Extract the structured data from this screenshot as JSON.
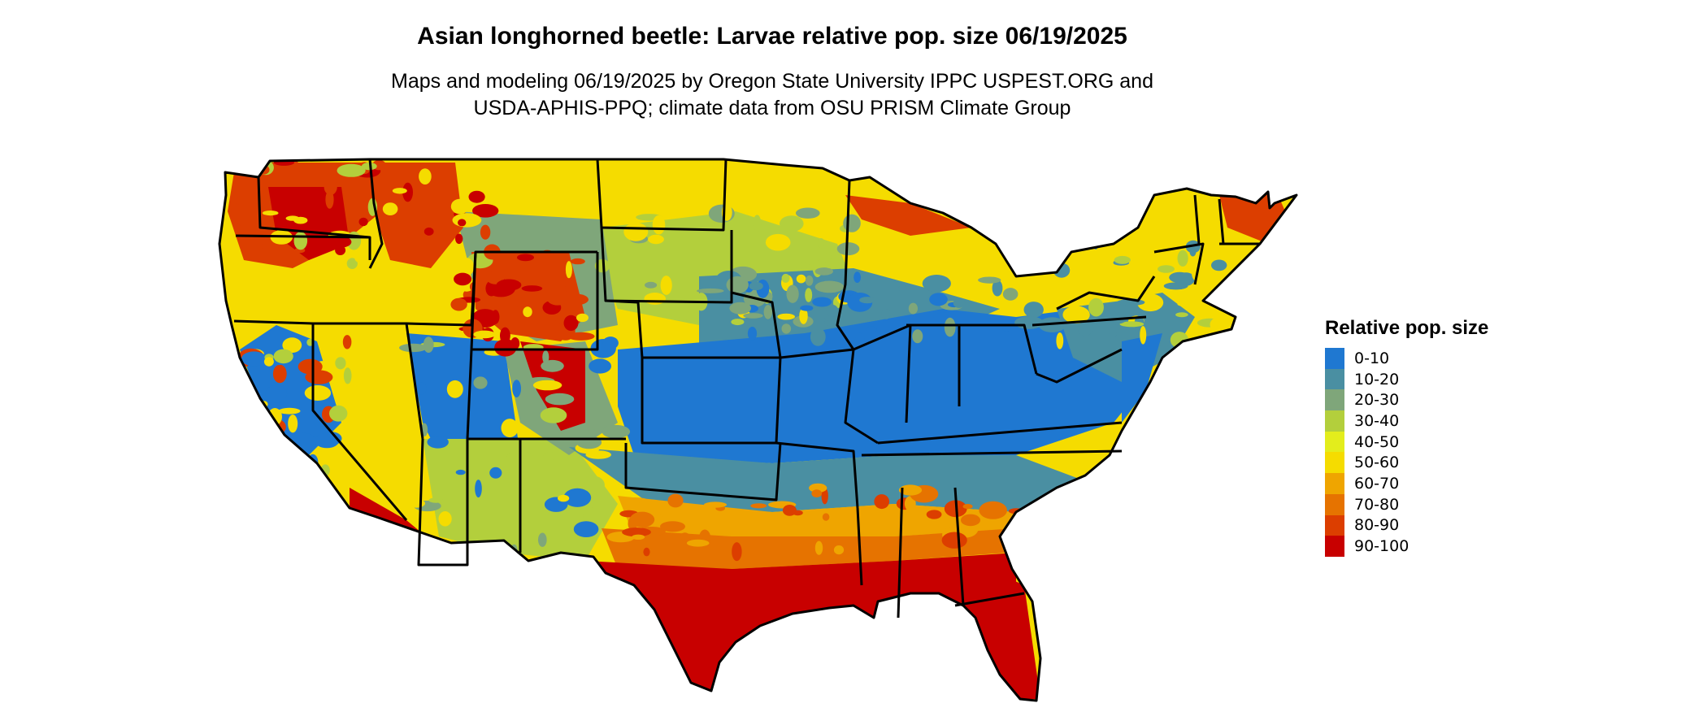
{
  "title": "Asian longhorned beetle: Larvae relative pop. size 06/19/2025",
  "subtitle_line1": "Maps and modeling 06/19/2025 by Oregon State University IPPC USPEST.ORG and",
  "subtitle_line2": "USDA-APHIS-PPQ; climate data from OSU PRISM Climate Group",
  "legend": {
    "title": "Relative pop. size",
    "items": [
      {
        "label": "0-10",
        "color": "#1f78d1"
      },
      {
        "label": "10-20",
        "color": "#4a8fa2"
      },
      {
        "label": "20-30",
        "color": "#7fa67a"
      },
      {
        "label": "30-40",
        "color": "#b3cf3c"
      },
      {
        "label": "40-50",
        "color": "#e3ed1c"
      },
      {
        "label": "50-60",
        "color": "#f5dc00"
      },
      {
        "label": "60-70",
        "color": "#efa500"
      },
      {
        "label": "70-80",
        "color": "#e67300"
      },
      {
        "label": "80-90",
        "color": "#dc3e00"
      },
      {
        "label": "90-100",
        "color": "#c80000"
      }
    ]
  }
}
